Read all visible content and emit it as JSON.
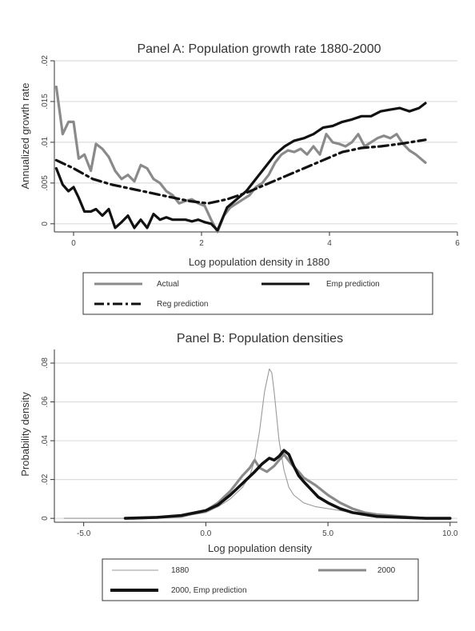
{
  "chart_data": [
    {
      "type": "line",
      "title": "Panel A: Population growth rate 1880-2000",
      "xlabel": "Log population density in 1880",
      "ylabel": "Annualized growth rate",
      "xlim": [
        -0.3,
        6
      ],
      "ylim": [
        -0.001,
        0.02
      ],
      "xticks": [
        0,
        2,
        4,
        6
      ],
      "xtick_labels": [
        "0",
        "2",
        "4",
        "6"
      ],
      "yticks": [
        0,
        0.005,
        0.01,
        0.015,
        0.02
      ],
      "ytick_labels": [
        "0",
        ".005",
        ".01",
        ".015",
        ".02"
      ],
      "grid": true,
      "legend_position": "bottom",
      "series": [
        {
          "name": "Actual",
          "color": "#8a8a8a",
          "style": "solid",
          "x": [
            -0.27,
            -0.17,
            -0.08,
            0.0,
            0.08,
            0.17,
            0.27,
            0.35,
            0.45,
            0.55,
            0.65,
            0.75,
            0.85,
            0.95,
            1.05,
            1.15,
            1.25,
            1.35,
            1.45,
            1.55,
            1.65,
            1.75,
            1.85,
            1.95,
            2.05,
            2.15,
            2.25,
            2.35,
            2.45,
            2.55,
            2.65,
            2.75,
            2.85,
            2.95,
            3.05,
            3.15,
            3.25,
            3.35,
            3.45,
            3.55,
            3.65,
            3.75,
            3.85,
            3.95,
            4.05,
            4.15,
            4.25,
            4.35,
            4.45,
            4.55,
            4.65,
            4.75,
            4.85,
            4.95,
            5.05,
            5.15,
            5.25,
            5.35,
            5.5
          ],
          "y": [
            0.0168,
            0.011,
            0.0125,
            0.0125,
            0.008,
            0.0085,
            0.0065,
            0.0098,
            0.0092,
            0.0082,
            0.0065,
            0.0055,
            0.006,
            0.0052,
            0.0072,
            0.0068,
            0.0055,
            0.005,
            0.004,
            0.0035,
            0.0025,
            0.0028,
            0.003,
            0.0025,
            0.0022,
            0.0005,
            -0.001,
            0.001,
            0.002,
            0.0025,
            0.003,
            0.0035,
            0.0045,
            0.005,
            0.006,
            0.0075,
            0.0085,
            0.009,
            0.0088,
            0.0092,
            0.0085,
            0.0095,
            0.0085,
            0.011,
            0.01,
            0.0098,
            0.0095,
            0.01,
            0.011,
            0.0095,
            0.01,
            0.0105,
            0.0108,
            0.0105,
            0.011,
            0.0098,
            0.009,
            0.0085,
            0.0075
          ]
        },
        {
          "name": "Emp prediction",
          "color": "#111111",
          "style": "solid",
          "x": [
            -0.27,
            -0.17,
            -0.08,
            0.0,
            0.08,
            0.17,
            0.27,
            0.35,
            0.45,
            0.55,
            0.65,
            0.75,
            0.85,
            0.95,
            1.05,
            1.15,
            1.25,
            1.35,
            1.45,
            1.55,
            1.65,
            1.75,
            1.85,
            1.95,
            2.05,
            2.15,
            2.25,
            2.4,
            2.55,
            2.7,
            2.85,
            3.0,
            3.15,
            3.3,
            3.45,
            3.6,
            3.75,
            3.9,
            4.05,
            4.2,
            4.35,
            4.5,
            4.65,
            4.8,
            4.95,
            5.1,
            5.25,
            5.4,
            5.5
          ],
          "y": [
            0.0068,
            0.0048,
            0.004,
            0.0045,
            0.0032,
            0.0015,
            0.0015,
            0.0018,
            0.001,
            0.0018,
            -0.0005,
            0.0002,
            0.001,
            -0.0005,
            0.0005,
            -0.0005,
            0.0012,
            0.0005,
            0.0008,
            0.0005,
            0.0005,
            0.0005,
            0.0003,
            0.0005,
            0.0002,
            0.0,
            -0.0008,
            0.002,
            0.003,
            0.004,
            0.0055,
            0.007,
            0.0085,
            0.0095,
            0.0102,
            0.0105,
            0.011,
            0.0118,
            0.012,
            0.0125,
            0.0128,
            0.0132,
            0.0132,
            0.0138,
            0.014,
            0.0142,
            0.0138,
            0.0142,
            0.0148
          ]
        },
        {
          "name": "Reg prediction",
          "color": "#111111",
          "style": "dashdot",
          "x": [
            -0.27,
            0.0,
            0.3,
            0.6,
            0.9,
            1.2,
            1.5,
            1.8,
            2.1,
            2.4,
            2.7,
            3.0,
            3.3,
            3.6,
            3.9,
            4.2,
            4.5,
            4.8,
            5.1,
            5.5
          ],
          "y": [
            0.0078,
            0.0068,
            0.0055,
            0.0048,
            0.0043,
            0.0038,
            0.0033,
            0.0028,
            0.0025,
            0.003,
            0.0038,
            0.0048,
            0.0058,
            0.0068,
            0.0078,
            0.0088,
            0.0093,
            0.0095,
            0.0098,
            0.0103
          ]
        }
      ]
    },
    {
      "type": "line",
      "title": "Panel B: Population densities",
      "xlabel": "Log population density",
      "ylabel": "Probability density",
      "xlim": [
        -6.2,
        10.3
      ],
      "ylim": [
        -0.002,
        0.087
      ],
      "xticks": [
        -5,
        0,
        5,
        10
      ],
      "xtick_labels": [
        "-5.0",
        "0.0",
        "5.0",
        "10.0"
      ],
      "yticks": [
        0,
        0.02,
        0.04,
        0.06,
        0.08
      ],
      "ytick_labels": [
        "0",
        ".02",
        ".04",
        ".06",
        ".08"
      ],
      "grid": true,
      "legend_position": "bottom",
      "series": [
        {
          "name": "1880",
          "color": "#9a9a9a",
          "style": "thin",
          "x": [
            -5.8,
            -3.0,
            -1.0,
            0.0,
            0.5,
            1.0,
            1.5,
            1.8,
            2.0,
            2.2,
            2.4,
            2.6,
            2.7,
            2.8,
            3.0,
            3.2,
            3.4,
            3.6,
            4.0,
            4.5,
            5.0,
            5.5,
            6.0,
            6.5,
            7.0,
            8.0,
            10.0
          ],
          "y": [
            0.0,
            0.0,
            0.001,
            0.003,
            0.006,
            0.01,
            0.016,
            0.022,
            0.03,
            0.045,
            0.065,
            0.077,
            0.075,
            0.065,
            0.04,
            0.025,
            0.016,
            0.012,
            0.008,
            0.006,
            0.005,
            0.004,
            0.003,
            0.002,
            0.001,
            0.0,
            0.0
          ]
        },
        {
          "name": "2000",
          "color": "#8a8a8a",
          "style": "solid",
          "x": [
            -3.0,
            -1.0,
            0.0,
            0.5,
            1.0,
            1.5,
            1.8,
            2.0,
            2.2,
            2.5,
            2.8,
            3.0,
            3.2,
            3.5,
            3.8,
            4.0,
            4.5,
            5.0,
            5.5,
            6.0,
            6.5,
            7.0,
            8.0,
            9.0,
            10.0
          ],
          "y": [
            0.0,
            0.001,
            0.004,
            0.008,
            0.014,
            0.022,
            0.026,
            0.03,
            0.026,
            0.024,
            0.027,
            0.03,
            0.033,
            0.028,
            0.024,
            0.021,
            0.017,
            0.012,
            0.008,
            0.005,
            0.003,
            0.002,
            0.001,
            0.0,
            0.0
          ]
        },
        {
          "name": "2000, Emp prediction",
          "color": "#111111",
          "style": "thick",
          "x": [
            -3.3,
            -2.0,
            -1.0,
            0.0,
            0.5,
            1.0,
            1.5,
            2.0,
            2.3,
            2.6,
            2.8,
            3.0,
            3.2,
            3.4,
            3.6,
            3.8,
            4.0,
            4.3,
            4.6,
            5.0,
            5.5,
            6.0,
            6.5,
            7.0,
            8.0,
            9.0,
            10.0
          ],
          "y": [
            0.0,
            0.0005,
            0.0015,
            0.004,
            0.007,
            0.012,
            0.018,
            0.024,
            0.028,
            0.031,
            0.03,
            0.032,
            0.035,
            0.033,
            0.027,
            0.022,
            0.019,
            0.015,
            0.011,
            0.008,
            0.005,
            0.003,
            0.002,
            0.001,
            0.0005,
            0.0,
            0.0
          ]
        }
      ]
    }
  ]
}
